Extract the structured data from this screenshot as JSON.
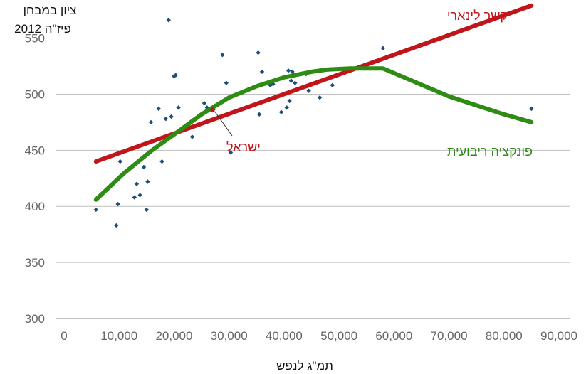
{
  "chart_data": {
    "type": "scatter",
    "xlabel": "תמ\"ג לנפש",
    "ylabel_lines": [
      "ציון במבחן",
      "פיז\"ה 2012"
    ],
    "xlim": [
      0,
      90000
    ],
    "ylim": [
      300,
      570
    ],
    "x_ticks": [
      0,
      10000,
      20000,
      30000,
      40000,
      50000,
      60000,
      70000,
      80000,
      90000
    ],
    "x_tick_labels": [
      "0",
      "10,000",
      "20,000",
      "30,000",
      "40,000",
      "50,000",
      "60,000",
      "70,000",
      "80,000",
      "90,000"
    ],
    "y_ticks": [
      300,
      350,
      400,
      450,
      500,
      550
    ],
    "y_tick_labels": [
      "300",
      "350",
      "400",
      "450",
      "500",
      "550"
    ],
    "grid": "horizontal",
    "colors": {
      "points": "#1f4e79",
      "linear": "#c0161b",
      "quadratic": "#2e8b14",
      "grid": "#bfbfbf",
      "israel": "#c0161b"
    },
    "points": [
      [
        5800,
        397
      ],
      [
        9500,
        383
      ],
      [
        9800,
        402
      ],
      [
        10200,
        440
      ],
      [
        12800,
        408
      ],
      [
        13200,
        420
      ],
      [
        13800,
        410
      ],
      [
        14500,
        435
      ],
      [
        15000,
        397
      ],
      [
        15200,
        422
      ],
      [
        15800,
        475
      ],
      [
        17200,
        487
      ],
      [
        17800,
        440
      ],
      [
        18500,
        478
      ],
      [
        19000,
        566
      ],
      [
        19500,
        480
      ],
      [
        20000,
        516
      ],
      [
        20300,
        517
      ],
      [
        20800,
        488
      ],
      [
        23300,
        462
      ],
      [
        25500,
        492
      ],
      [
        26000,
        488
      ],
      [
        28800,
        535
      ],
      [
        29500,
        510
      ],
      [
        30300,
        448
      ],
      [
        35300,
        537
      ],
      [
        35500,
        482
      ],
      [
        36000,
        520
      ],
      [
        37500,
        508
      ],
      [
        38000,
        509
      ],
      [
        38300,
        497
      ],
      [
        39500,
        484
      ],
      [
        40500,
        488
      ],
      [
        40800,
        521
      ],
      [
        41000,
        494
      ],
      [
        41300,
        512
      ],
      [
        41500,
        520
      ],
      [
        42000,
        510
      ],
      [
        44000,
        518
      ],
      [
        44500,
        503
      ],
      [
        46500,
        497
      ],
      [
        48800,
        508
      ],
      [
        58000,
        541
      ],
      [
        85000,
        487
      ]
    ],
    "israel_point": [
      27000,
      486
    ],
    "series": [
      {
        "name": "קשר לינארי",
        "points": [
          [
            5800,
            440
          ],
          [
            85000,
            579
          ]
        ]
      },
      {
        "name": "פונקציה ריבועית",
        "points": [
          [
            5800,
            406
          ],
          [
            11000,
            430
          ],
          [
            16000,
            450
          ],
          [
            20000,
            464
          ],
          [
            25000,
            482
          ],
          [
            30000,
            497
          ],
          [
            35000,
            507
          ],
          [
            40000,
            515
          ],
          [
            45000,
            520
          ],
          [
            48000,
            522
          ],
          [
            52000,
            523
          ],
          [
            58000,
            523
          ],
          [
            70000,
            498
          ],
          [
            80000,
            482
          ],
          [
            85000,
            475
          ]
        ]
      }
    ],
    "annotations": {
      "israel": "ישראל"
    }
  }
}
